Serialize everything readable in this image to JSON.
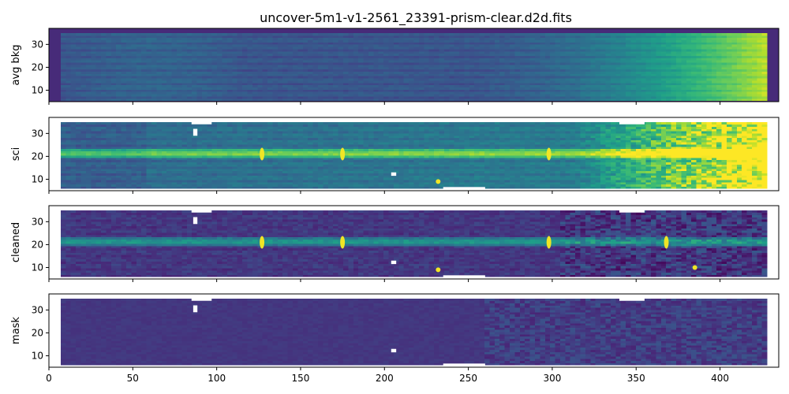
{
  "figure": {
    "title": "uncover-5m1-v1-2561_23391-prism-clear.d2d.fits"
  },
  "chart_data": {
    "type": "heatmap",
    "title": "uncover-5m1-v1-2561_23391-prism-clear.d2d.fits",
    "colormap": "viridis",
    "xlim": [
      0,
      435
    ],
    "ylim": [
      5,
      37
    ],
    "x_ticks": [
      0,
      50,
      100,
      150,
      200,
      250,
      300,
      350,
      400
    ],
    "y_ticks": [
      10,
      20,
      30
    ],
    "sharex": true,
    "grid": false,
    "panels": [
      {
        "name": "avg_bkg",
        "ylabel": "avg bkg",
        "data_extent_x": [
          7,
          428
        ],
        "data_extent_y": [
          5.5,
          35
        ],
        "masked_gaps": [],
        "trace_center_y": null,
        "features": []
      },
      {
        "name": "sci",
        "ylabel": "sci",
        "data_extent_x": [
          7,
          428
        ],
        "data_extent_y": [
          6,
          35
        ],
        "masked_gaps": [
          [
            85,
            97
          ],
          [
            340,
            355
          ],
          [
            235,
            260
          ]
        ],
        "trace_center_y": 21.5,
        "features": [
          {
            "x": 127,
            "y": 21
          },
          {
            "x": 175,
            "y": 21
          },
          {
            "x": 298,
            "y": 21
          },
          {
            "x": 232,
            "y": 9
          }
        ]
      },
      {
        "name": "cleaned",
        "ylabel": "cleaned",
        "data_extent_x": [
          7,
          428
        ],
        "data_extent_y": [
          6,
          35
        ],
        "masked_gaps": [
          [
            85,
            97
          ],
          [
            340,
            355
          ],
          [
            235,
            260
          ]
        ],
        "trace_center_y": 21.5,
        "features": [
          {
            "x": 127,
            "y": 21
          },
          {
            "x": 175,
            "y": 21
          },
          {
            "x": 298,
            "y": 21
          },
          {
            "x": 368,
            "y": 21
          },
          {
            "x": 232,
            "y": 9
          },
          {
            "x": 385,
            "y": 10
          }
        ]
      },
      {
        "name": "mask",
        "ylabel": "mask",
        "data_extent_x": [
          7,
          428
        ],
        "data_extent_y": [
          6,
          35
        ],
        "masked_gaps": [
          [
            85,
            97
          ],
          [
            340,
            355
          ],
          [
            235,
            260
          ]
        ],
        "trace_center_y": null,
        "features": []
      }
    ]
  }
}
